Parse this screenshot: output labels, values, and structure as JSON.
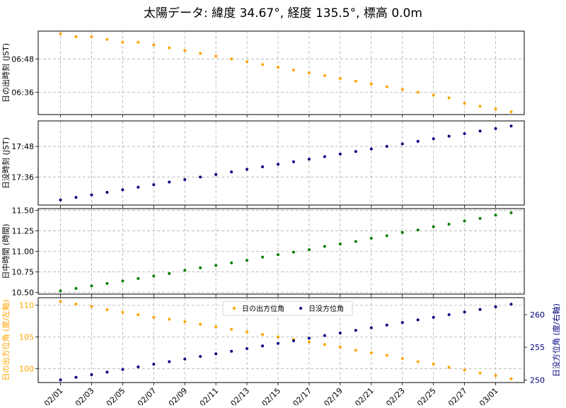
{
  "title": "太陽データ: 緯度 34.67°, 経度 135.5°, 標高 0.0m",
  "colors": {
    "sunrise": "#FFA500",
    "sunset": "#000080",
    "noon": "#008000",
    "grid": "#b0b0b0",
    "axis": "#000000",
    "sunrise_azimuth_label": "#FFA500",
    "sunset_azimuth_label": "#000080"
  },
  "chart_data": [
    {
      "type": "scatter",
      "name": "sunrise",
      "ylabel": "日の出時刻 (JST)",
      "y_ticks": [
        "06:36",
        "06:48"
      ],
      "x": [
        "02/01",
        "02/02",
        "02/03",
        "02/04",
        "02/05",
        "02/06",
        "02/07",
        "02/08",
        "02/09",
        "02/10",
        "02/11",
        "02/12",
        "02/13",
        "02/14",
        "02/15",
        "02/16",
        "02/17",
        "02/18",
        "02/19",
        "02/20",
        "02/21",
        "02/22",
        "02/23",
        "02/24",
        "02/25",
        "02/26",
        "02/27",
        "02/28",
        "03/01",
        "03/02"
      ],
      "values": [
        "06:57",
        "06:56",
        "06:56",
        "06:55",
        "06:54",
        "06:54",
        "06:53",
        "06:52",
        "06:51",
        "06:50",
        "06:49",
        "06:48",
        "06:47",
        "06:46",
        "06:45",
        "06:44",
        "06:43",
        "06:42",
        "06:41",
        "06:40",
        "06:39",
        "06:38",
        "06:37",
        "06:36",
        "06:35",
        "06:34",
        "06:32",
        "06:31",
        "06:30",
        "06:29"
      ]
    },
    {
      "type": "scatter",
      "name": "sunset",
      "ylabel": "日没時刻 (JST)",
      "y_ticks": [
        "17:36",
        "17:48"
      ],
      "x": [
        "02/01",
        "02/02",
        "02/03",
        "02/04",
        "02/05",
        "02/06",
        "02/07",
        "02/08",
        "02/09",
        "02/10",
        "02/11",
        "02/12",
        "02/13",
        "02/14",
        "02/15",
        "02/16",
        "02/17",
        "02/18",
        "02/19",
        "02/20",
        "02/21",
        "02/22",
        "02/23",
        "02/24",
        "02/25",
        "02/26",
        "02/27",
        "02/28",
        "03/01",
        "03/02"
      ],
      "values": [
        "17:27",
        "17:28",
        "17:29",
        "17:30",
        "17:31",
        "17:32",
        "17:33",
        "17:34",
        "17:35",
        "17:36",
        "17:37",
        "17:38",
        "17:39",
        "17:40",
        "17:41",
        "17:42",
        "17:43",
        "17:44",
        "17:45",
        "17:46",
        "17:47",
        "17:48",
        "17:49",
        "17:50",
        "17:51",
        "17:52",
        "17:53",
        "17:54",
        "17:55",
        "17:56"
      ]
    },
    {
      "type": "scatter",
      "name": "noon",
      "ylabel": "日中時間 (時間)",
      "ylim": [
        10.48,
        11.52
      ],
      "y_ticks": [
        "10.50",
        "10.75",
        "11.00",
        "11.25",
        "11.50"
      ],
      "x": [
        "02/01",
        "02/02",
        "02/03",
        "02/04",
        "02/05",
        "02/06",
        "02/07",
        "02/08",
        "02/09",
        "02/10",
        "02/11",
        "02/12",
        "02/13",
        "02/14",
        "02/15",
        "02/16",
        "02/17",
        "02/18",
        "02/19",
        "02/20",
        "02/21",
        "02/22",
        "02/23",
        "02/24",
        "02/25",
        "02/26",
        "02/27",
        "02/28",
        "03/01",
        "03/02"
      ],
      "values": [
        10.52,
        10.55,
        10.58,
        10.61,
        10.64,
        10.67,
        10.7,
        10.73,
        10.77,
        10.8,
        10.83,
        10.86,
        10.89,
        10.93,
        10.96,
        10.99,
        11.02,
        11.06,
        11.09,
        11.12,
        11.16,
        11.19,
        11.23,
        11.26,
        11.3,
        11.33,
        11.37,
        11.4,
        11.44,
        11.47
      ]
    },
    {
      "type": "scatter",
      "name": "azimuth",
      "ylabel_left": "日の出方位角 (度/左軸)",
      "ylabel_right": "日没方位角 (度/右軸)",
      "left_ylim": [
        97.8,
        111.2
      ],
      "right_ylim": [
        249.6,
        262.6
      ],
      "left_ticks": [
        "100",
        "105",
        "110"
      ],
      "right_ticks": [
        "250",
        "255",
        "260"
      ],
      "legend_placement": "top-center",
      "x": [
        "02/01",
        "02/02",
        "02/03",
        "02/04",
        "02/05",
        "02/06",
        "02/07",
        "02/08",
        "02/09",
        "02/10",
        "02/11",
        "02/12",
        "02/13",
        "02/14",
        "02/15",
        "02/16",
        "02/17",
        "02/18",
        "02/19",
        "02/20",
        "02/21",
        "02/22",
        "02/23",
        "02/24",
        "02/25",
        "02/26",
        "02/27",
        "02/28",
        "03/01",
        "03/02"
      ],
      "series": [
        {
          "name": "日の出方位角",
          "axis": "left",
          "values": [
            110.6,
            110.2,
            109.8,
            109.3,
            108.9,
            108.5,
            108.1,
            107.8,
            107.4,
            107.0,
            106.6,
            106.2,
            105.8,
            105.4,
            105.0,
            104.6,
            104.2,
            103.8,
            103.4,
            102.9,
            102.5,
            102.1,
            101.6,
            101.1,
            100.7,
            100.2,
            99.8,
            99.3,
            98.9,
            98.4
          ]
        },
        {
          "name": "日没方位角",
          "axis": "right",
          "values": [
            250.0,
            250.4,
            250.8,
            251.2,
            251.6,
            252.0,
            252.4,
            252.8,
            253.2,
            253.6,
            254.0,
            254.4,
            254.8,
            255.2,
            255.6,
            256.0,
            256.4,
            256.8,
            257.2,
            257.6,
            258.0,
            258.4,
            258.8,
            259.2,
            259.6,
            260.0,
            260.4,
            260.8,
            261.2,
            261.6
          ]
        }
      ]
    }
  ],
  "x_tick_labels": [
    "02/01",
    "02/03",
    "02/05",
    "02/07",
    "02/09",
    "02/11",
    "02/13",
    "02/15",
    "02/17",
    "02/19",
    "02/21",
    "02/23",
    "02/25",
    "02/27",
    "03/01"
  ]
}
